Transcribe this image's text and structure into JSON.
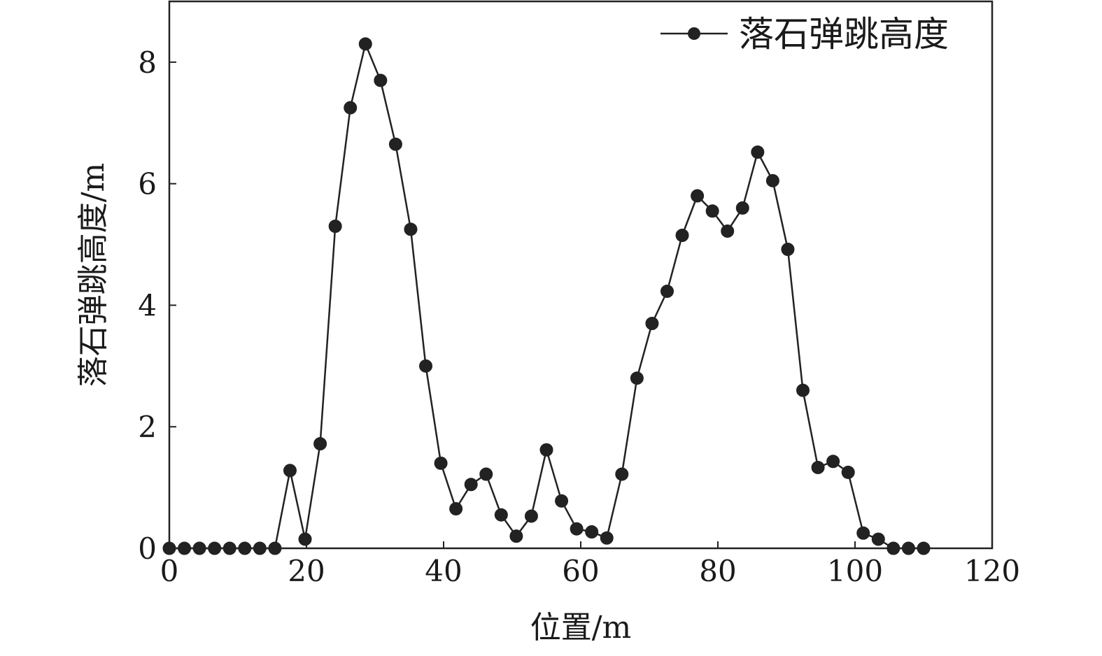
{
  "chart_data": {
    "type": "line",
    "title": "",
    "xlabel": "位置/m",
    "ylabel": "落石弹跳高度/m",
    "xlim": [
      0,
      120
    ],
    "ylim": [
      0,
      9
    ],
    "xticks": [
      0,
      20,
      40,
      60,
      80,
      100,
      120
    ],
    "yticks": [
      0,
      2,
      4,
      6,
      8
    ],
    "grid": false,
    "legend_position": "top-right",
    "colors": {
      "line": "#222222",
      "marker": "#222222",
      "axis": "#222222"
    },
    "series": [
      {
        "name": "落石弹跳高度",
        "marker": "circle",
        "x": [
          0,
          2.2,
          4.4,
          6.6,
          8.8,
          11.0,
          13.2,
          15.4,
          17.6,
          19.8,
          22.0,
          24.2,
          26.4,
          28.6,
          30.8,
          33.0,
          35.2,
          37.4,
          39.6,
          41.8,
          44.0,
          46.2,
          48.4,
          50.6,
          52.8,
          55.0,
          57.2,
          59.4,
          61.6,
          63.8,
          66.0,
          68.2,
          70.4,
          72.6,
          74.8,
          77.0,
          79.2,
          81.4,
          83.6,
          85.8,
          88.0,
          90.2,
          92.4,
          94.6,
          96.8,
          99.0,
          101.2,
          103.4,
          105.6,
          107.8,
          110.0
        ],
        "y": [
          0.0,
          0.0,
          0.0,
          0.0,
          0.0,
          0.0,
          0.0,
          0.0,
          1.28,
          0.15,
          1.72,
          5.3,
          7.25,
          8.3,
          7.7,
          6.65,
          5.25,
          3.0,
          1.4,
          0.65,
          1.05,
          1.22,
          0.55,
          0.2,
          0.53,
          1.62,
          0.78,
          0.32,
          0.27,
          0.17,
          1.22,
          2.8,
          3.7,
          4.23,
          5.15,
          5.8,
          5.55,
          5.22,
          5.6,
          6.52,
          6.05,
          4.92,
          2.6,
          1.33,
          1.43,
          1.25,
          0.25,
          0.15,
          0.0,
          0.0,
          0.0
        ]
      }
    ]
  }
}
